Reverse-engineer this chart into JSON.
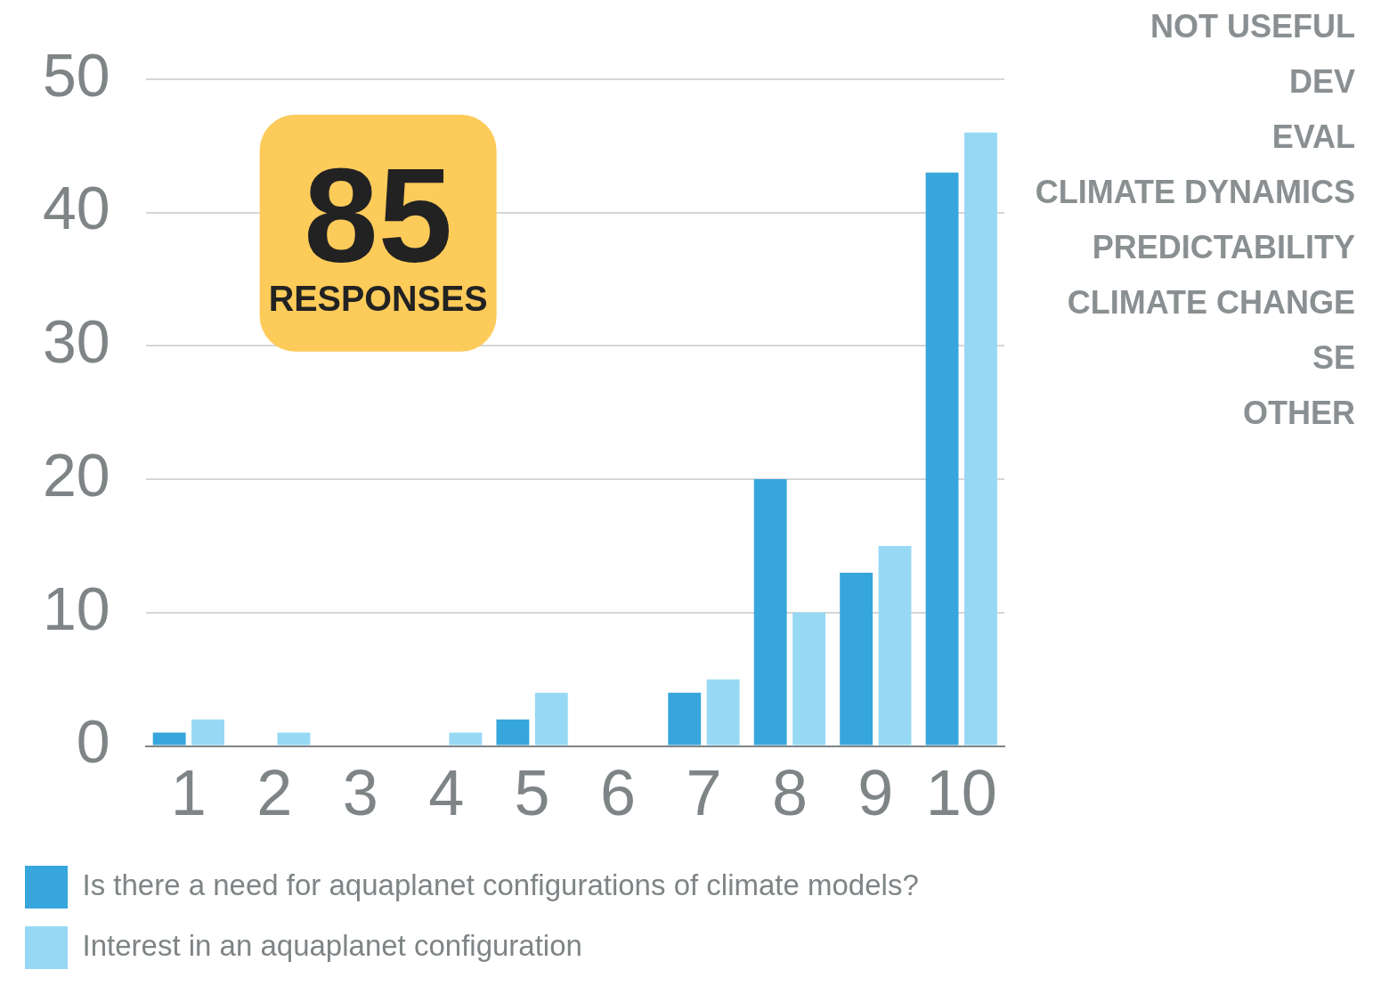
{
  "chart_data": {
    "type": "bar",
    "categories": [
      "1",
      "2",
      "3",
      "4",
      "5",
      "6",
      "7",
      "8",
      "9",
      "10"
    ],
    "series": [
      {
        "name": "Is there a need for aquaplanet configurations of climate models?",
        "color": "#36a6dc",
        "values": [
          1,
          0,
          0,
          0,
          2,
          0,
          4,
          20,
          13,
          43
        ]
      },
      {
        "name": "Interest in an aquaplanet configuration",
        "color": "#97d9f5",
        "values": [
          2,
          1,
          0,
          1,
          4,
          0,
          5,
          10,
          15,
          46
        ]
      }
    ],
    "ylim": [
      0,
      50
    ],
    "yticks": [
      0,
      10,
      20,
      30,
      40,
      50
    ],
    "grid": "y",
    "legend": "bottom",
    "annotations": [
      "85",
      "RESPONSES",
      "NOT USEFUL",
      "DEV",
      "EVAL",
      "CLIMATE DYNAMICS",
      "PREDICTABILITY",
      "CLIMATE CHANGE",
      "SE",
      "OTHER"
    ]
  }
}
